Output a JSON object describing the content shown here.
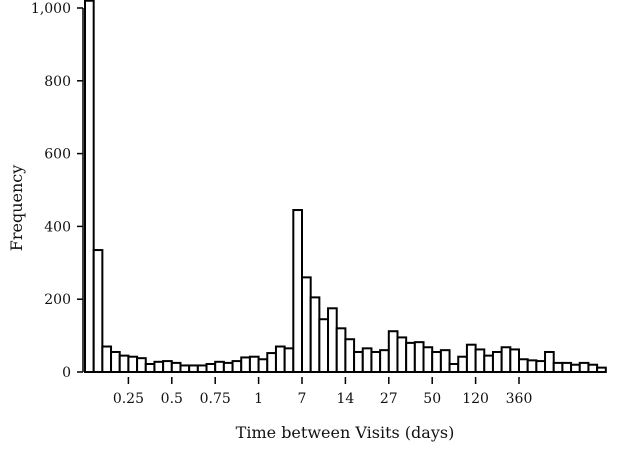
{
  "chart_data": {
    "type": "bar",
    "title": "",
    "xlabel": "Time between Visits (days)",
    "ylabel": "Frequency",
    "ylim": [
      0,
      1000
    ],
    "grid": false,
    "legend": "none",
    "bar_color": "#ffffff",
    "bar_edge_color": "#000000",
    "y_ticks": [
      {
        "value": 0,
        "label": "0"
      },
      {
        "value": 200,
        "label": "200"
      },
      {
        "value": 400,
        "label": "400"
      },
      {
        "value": 600,
        "label": "600"
      },
      {
        "value": 800,
        "label": "800"
      },
      {
        "value": 1000,
        "label": "1,000"
      }
    ],
    "x_ticks": [
      {
        "bin": 5,
        "label": "0.25"
      },
      {
        "bin": 10,
        "label": "0.5"
      },
      {
        "bin": 15,
        "label": "0.75"
      },
      {
        "bin": 20,
        "label": "1"
      },
      {
        "bin": 25,
        "label": "7"
      },
      {
        "bin": 30,
        "label": "14"
      },
      {
        "bin": 35,
        "label": "27"
      },
      {
        "bin": 40,
        "label": "50"
      },
      {
        "bin": 45,
        "label": "120"
      },
      {
        "bin": 50,
        "label": "360"
      }
    ],
    "values": [
      1020,
      335,
      70,
      55,
      45,
      42,
      38,
      22,
      28,
      30,
      25,
      18,
      18,
      18,
      22,
      28,
      25,
      30,
      40,
      42,
      35,
      52,
      70,
      65,
      445,
      260,
      205,
      145,
      175,
      120,
      90,
      55,
      65,
      55,
      60,
      112,
      95,
      80,
      82,
      68,
      55,
      60,
      22,
      42,
      75,
      62,
      45,
      55,
      68,
      62,
      35,
      32,
      30,
      55,
      25,
      25,
      20,
      25,
      20,
      12
    ]
  }
}
